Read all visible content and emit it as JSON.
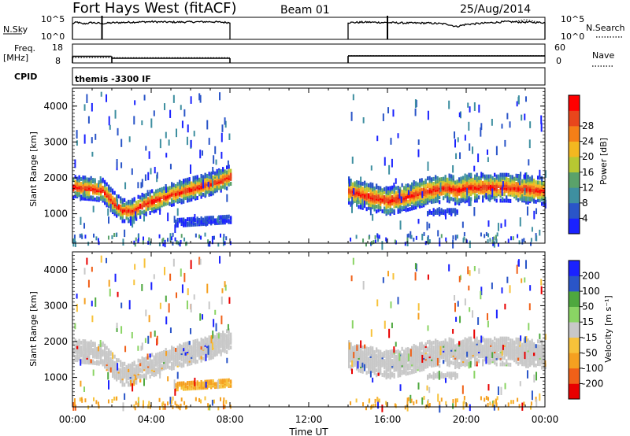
{
  "header": {
    "station": "Fort Hays West (fitACF)",
    "beam": "Beam 01",
    "date": "25/Aug/2014"
  },
  "labels": {
    "nsky": "N.Sky",
    "nsky_ticks": [
      "10^5",
      "10^0"
    ],
    "nsearch": "N.Search",
    "nsearch_ticks": [
      "10^5",
      "10^0"
    ],
    "freq": "Freq.",
    "freq_unit": "[MHz]",
    "freq_ticks": [
      "18",
      "8"
    ],
    "nave": "Nave",
    "nave_ticks": [
      "60",
      "0"
    ],
    "cpid": "CPID",
    "cpid_text": "themis -3300 IF"
  },
  "colors": {
    "power": [
      "#1a22ff",
      "#2a55c8",
      "#3e8fa0",
      "#5aa26a",
      "#b7c832",
      "#f3b820",
      "#f57f17",
      "#e8461c",
      "#ff0000"
    ],
    "velocity": [
      "#1a22ff",
      "#2a55c8",
      "#4ea83e",
      "#8ad464",
      "#c8c8c8",
      "#f7c23a",
      "#f5a020",
      "#f06018",
      "#e80000"
    ],
    "velocity_ground": "#c8c8c8"
  },
  "chart_data": [
    {
      "type": "line",
      "title": "N.Sky / N.Search",
      "x_range": [
        "00:00",
        "24:00"
      ],
      "y_scale": "log",
      "ylim": [
        "10^0",
        "10^5"
      ],
      "series": [
        {
          "name": "N.Sky",
          "segments": [
            {
              "x": [
                0.0,
                0.25,
                0.5,
                1.0,
                1.5,
                2.0,
                3.0,
                4.0,
                5.0,
                6.0,
                7.0,
                8.0
              ],
              "y": [
                0.72,
                0.78,
                0.7,
                0.76,
                0.72,
                0.75,
                0.78,
                0.8,
                0.78,
                0.79,
                0.8,
                0.76
              ]
            },
            {
              "x": [
                14.0,
                15.0,
                16.0,
                17.0,
                18.0,
                19.0,
                19.5,
                20.0,
                21.0,
                22.0,
                23.0,
                24.0
              ],
              "y": [
                0.76,
                0.78,
                0.76,
                0.74,
                0.74,
                0.7,
                0.58,
                0.68,
                0.74,
                0.8,
                0.78,
                0.76
              ]
            }
          ]
        },
        {
          "name": "N.Search",
          "style": "dotted",
          "segments": [
            {
              "x": [
                22.5,
                23.0,
                23.5
              ],
              "y": [
                0.82,
                0.9,
                0.82
              ]
            }
          ]
        }
      ],
      "spikes": [
        {
          "x": 1.5,
          "y": 1.0
        },
        {
          "x": 16.0,
          "y": 1.0
        }
      ]
    },
    {
      "type": "line",
      "title": "Freq. / Nave",
      "x_range": [
        "00:00",
        "24:00"
      ],
      "series": [
        {
          "name": "Freq.",
          "unit": "MHz",
          "segments": [
            {
              "x": [
                0.0,
                1.98
              ],
              "y": [
                11.5,
                11.5
              ]
            },
            {
              "x": [
                2.0,
                8.0
              ],
              "y": [
                10.5,
                10.5
              ]
            },
            {
              "x": [
                14.0,
                24.0
              ],
              "y": [
                11.7,
                11.7
              ]
            }
          ]
        },
        {
          "name": "Nave",
          "style": "dotted",
          "segments": [
            {
              "x": [
                0.0,
                2.0,
                8.0
              ],
              "y": [
                17,
                17,
                17
              ]
            },
            {
              "x": [
                14.0,
                24.0
              ],
              "y": [
                23,
                23
              ]
            }
          ]
        }
      ]
    },
    {
      "type": "heatmap",
      "title": "Power",
      "xlabel": "Time UT",
      "ylabel": "Slant Range [km]",
      "x_ticks": [
        "00:00",
        "04:00",
        "08:00",
        "12:00",
        "16:00",
        "20:00",
        "00:00"
      ],
      "y_ticks": [
        "1000",
        "2000",
        "3000",
        "4000"
      ],
      "ylim": [
        180,
        4500
      ],
      "colorbar": {
        "label": "Power [dB]",
        "ticks": [
          "4",
          "8",
          "12",
          "16",
          "20",
          "24",
          "28"
        ],
        "range": [
          0,
          30
        ]
      },
      "scatter_bands": [
        {
          "x": [
            0.0,
            0.5,
            1.0,
            1.5,
            2.0,
            2.5,
            3.0,
            3.5,
            4.0,
            5.0,
            6.0,
            7.0,
            8.0
          ],
          "center_km": [
            1800,
            1780,
            1760,
            1720,
            1400,
            1150,
            1150,
            1300,
            1400,
            1600,
            1750,
            1900,
            2100
          ],
          "half_width_km": 300
        },
        {
          "x": [
            14.0,
            15.0,
            16.0,
            17.0,
            18.0,
            19.0,
            19.5,
            20.0,
            21.0,
            22.0,
            23.0,
            24.0
          ],
          "center_km": [
            1700,
            1550,
            1420,
            1550,
            1700,
            1800,
            1700,
            1800,
            1800,
            1800,
            1750,
            1700
          ],
          "half_width_km": 380
        }
      ],
      "extra_bands": [
        {
          "x": [
            5.2,
            8.0
          ],
          "center_km": [
            800,
            900
          ],
          "half_width_km": 80,
          "power": "low"
        },
        {
          "x": [
            18.0,
            19.6
          ],
          "center_km": [
            1100,
            1100
          ],
          "half_width_km": 60,
          "power": "low"
        }
      ]
    },
    {
      "type": "heatmap",
      "title": "Velocity",
      "xlabel": "Time UT",
      "ylabel": "Slant Range [km]",
      "x_ticks": [
        "00:00",
        "04:00",
        "08:00",
        "12:00",
        "16:00",
        "20:00",
        "00:00"
      ],
      "y_ticks": [
        "1000",
        "2000",
        "3000",
        "4000"
      ],
      "ylim": [
        180,
        4500
      ],
      "colorbar": {
        "label": "Velocity [m s⁻¹]",
        "ticks": [
          "200",
          "100",
          "50",
          "15",
          "-15",
          "-50",
          "-100",
          "-200"
        ],
        "range": [
          -250,
          250
        ]
      },
      "dominant": "ground scatter (grey)",
      "orange_band": {
        "x": [
          5.2,
          8.0
        ],
        "center_km": [
          800,
          900
        ]
      }
    }
  ],
  "x_axis": {
    "label": "Time UT",
    "ticks": [
      "00:00",
      "04:00",
      "08:00",
      "12:00",
      "16:00",
      "20:00",
      "00:00"
    ]
  }
}
